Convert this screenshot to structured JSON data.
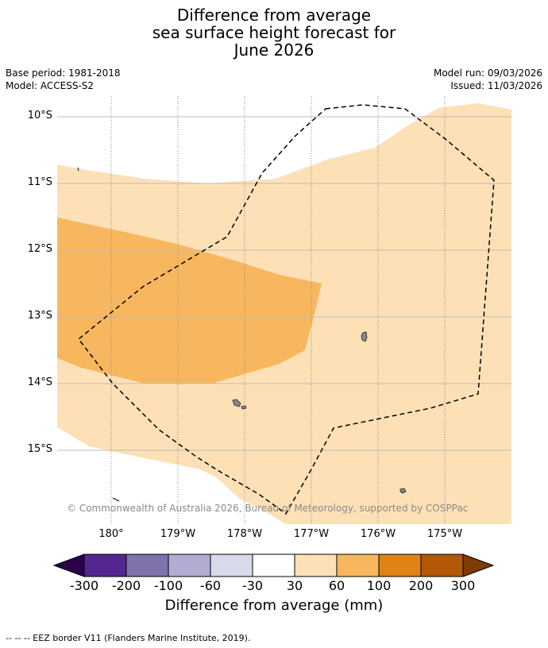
{
  "title_lines": [
    "Difference from average",
    "sea surface height forecast for",
    "June 2026"
  ],
  "meta_left": [
    "Base period: 1981-2018",
    "Model: ACCESS-S2"
  ],
  "meta_right": [
    "Model run: 09/03/2026",
    "Issued: 11/03/2026"
  ],
  "lat_labels": [
    "10°S",
    "11°S",
    "12°S",
    "13°S",
    "14°S",
    "15°S"
  ],
  "lon_labels": [
    "180°",
    "179°W",
    "178°W",
    "177°W",
    "176°W",
    "175°W"
  ],
  "copyright": "© Commonwealth of Australia 2026, Bureau of Meteorology, supported by COSPPac",
  "colorbar": {
    "ticks": [
      "-300",
      "-200",
      "-100",
      "-60",
      "-30",
      "30",
      "60",
      "100",
      "200",
      "300"
    ],
    "colors": [
      "#54278f",
      "#8073ac",
      "#b2abd2",
      "#d8daeb",
      "#ffffff",
      "#fde0b6",
      "#f8b75e",
      "#e08214",
      "#b35806"
    ],
    "under_color": "#2d004b",
    "over_color": "#7f3b08",
    "title": "Difference from average (mm)"
  },
  "footnote": "--  --  -- EEZ border V11 (Flanders Marine Institute, 2019).",
  "map_fill_colors": {
    "light": "#fde0b6",
    "medium": "#f8b75e",
    "land": "#888888"
  }
}
